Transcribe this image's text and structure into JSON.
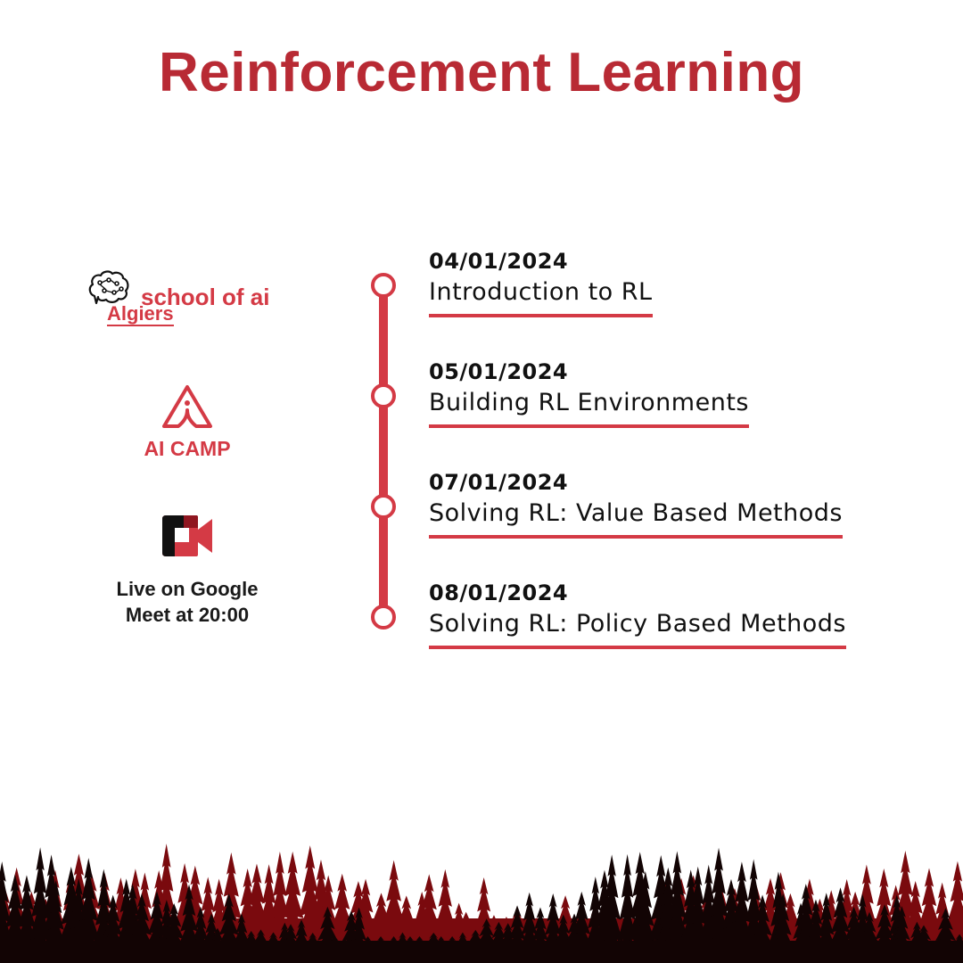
{
  "title": "Reinforcement Learning",
  "brands": {
    "school_of_ai": {
      "line1": "school of ai",
      "line2": "Algiers",
      "icon": "brain-circuit-icon"
    },
    "ai_camp": {
      "label": "AI CAMP",
      "icon": "ai-camp-tent-icon"
    },
    "meet": {
      "label_line1": "Live on Google",
      "label_line2": "Meet at 20:00",
      "icon": "google-meet-icon"
    }
  },
  "schedule": [
    {
      "date": "04/01/2024",
      "topic": "Introduction to RL"
    },
    {
      "date": "05/01/2024",
      "topic": "Building RL Environments"
    },
    {
      "date": "07/01/2024",
      "topic": "Solving RL: Value Based Methods"
    },
    {
      "date": "08/01/2024",
      "topic": "Solving RL: Policy Based Methods"
    }
  ],
  "colors": {
    "accent": "#d43a45",
    "title": "#b82a34",
    "forest_red": "#7a0a0e",
    "forest_dark": "#120404"
  }
}
